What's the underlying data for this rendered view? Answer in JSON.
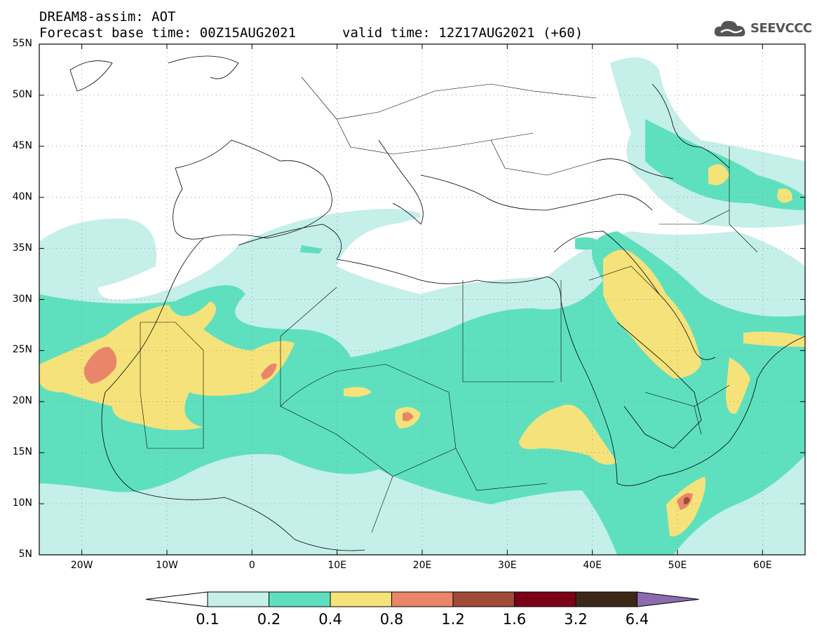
{
  "header": {
    "product": "DREAM8-assim: AOT",
    "base_time": "Forecast base time: 00Z15AUG2021",
    "valid_time": "valid time: 12Z17AUG2021 (+60)"
  },
  "logo": {
    "text": "SEEVCCC",
    "icon": "cloud-icon"
  },
  "map": {
    "lat_labels": [
      "55N",
      "50N",
      "45N",
      "40N",
      "35N",
      "30N",
      "25N",
      "20N",
      "15N",
      "10N",
      "5N"
    ],
    "lon_labels": [
      "20W",
      "10W",
      "0",
      "10E",
      "20E",
      "30E",
      "40E",
      "50E",
      "60E"
    ],
    "colors": {
      "c1": "#c5efe9",
      "c2": "#5ee0bf",
      "c3": "#f6e27a",
      "c4": "#e9866a",
      "c5": "#a04a38",
      "c6": "#7a0018",
      "c7": "#3d2818",
      "c8": "#8e6bb0"
    }
  },
  "colorbar": {
    "labels": [
      "0.1",
      "0.2",
      "0.4",
      "0.8",
      "1.2",
      "1.6",
      "3.2",
      "6.4"
    ],
    "colors": [
      "#c5efe9",
      "#5ee0bf",
      "#f6e27a",
      "#e9866a",
      "#a04a38",
      "#7a0018",
      "#3d2818"
    ],
    "under_color": "#ffffff",
    "over_color": "#8e6bb0"
  }
}
